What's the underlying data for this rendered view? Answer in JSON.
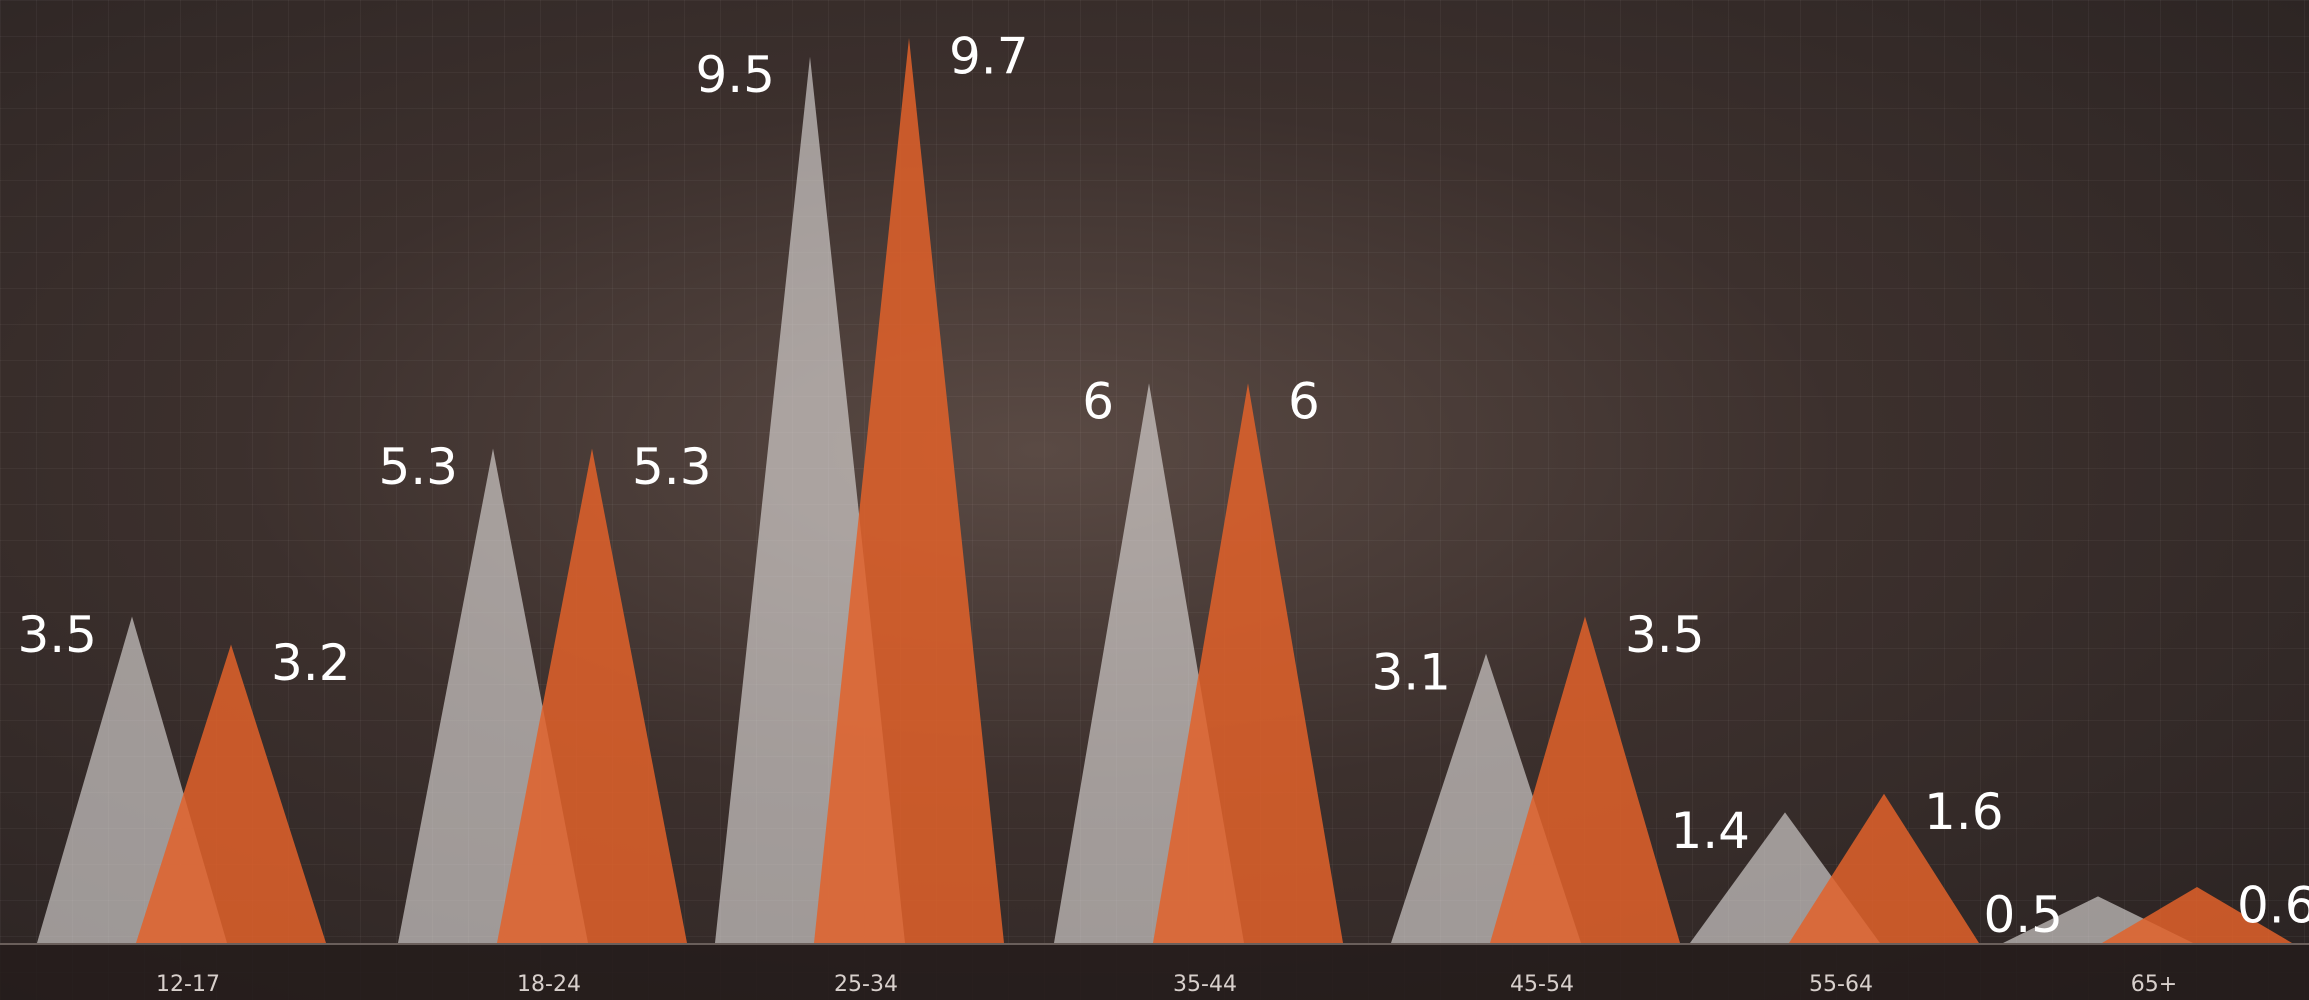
{
  "chart_data": {
    "type": "triangle",
    "categories": [
      "12-17",
      "18-24",
      "25-34",
      "35-44",
      "45-54",
      "55-64",
      "65+"
    ],
    "series": [
      {
        "color": "#e8e4e2",
        "values": [
          3.5,
          5.3,
          9.5,
          6,
          3.1,
          1.4,
          0.5
        ]
      },
      {
        "color": "#e2622a",
        "values": [
          3.2,
          5.3,
          9.7,
          6,
          3.5,
          1.6,
          0.6
        ]
      }
    ],
    "ylim": [
      0,
      10
    ]
  }
}
